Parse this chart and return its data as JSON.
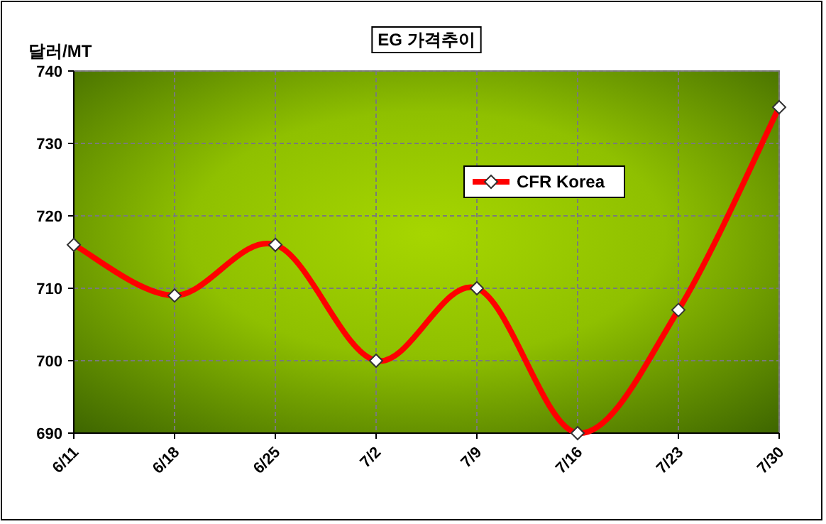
{
  "chart_data": {
    "type": "line",
    "title": "EG 가격추이",
    "ylabel": "달러/MT",
    "categories": [
      "6/11",
      "6/18",
      "6/25",
      "7/2",
      "7/9",
      "7/16",
      "7/23",
      "7/30"
    ],
    "series": [
      {
        "name": "CFR Korea",
        "color": "#ff0000",
        "values": [
          716,
          709,
          716,
          700,
          710,
          690,
          707,
          735
        ]
      }
    ],
    "ylim": [
      690,
      740
    ],
    "yticks": [
      690,
      700,
      710,
      720,
      730,
      740
    ],
    "grid": true,
    "legend": "top right",
    "marker": "diamond",
    "line_style": "solid"
  }
}
